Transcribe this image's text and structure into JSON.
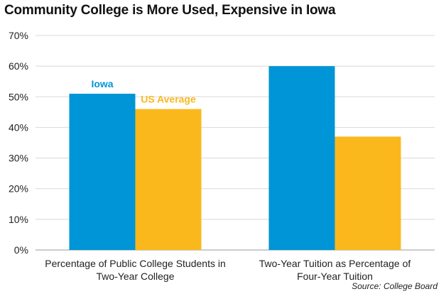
{
  "title": "Community College is More Used, Expensive in Iowa",
  "source": "Source: College Board",
  "chart_data": {
    "type": "bar",
    "title": "Community College is More Used, Expensive in Iowa",
    "categories": [
      [
        "Percentage of Public College Students in",
        "Two-Year College"
      ],
      [
        "Two-Year Tuition as Percentage of",
        "Four-Year Tuition"
      ]
    ],
    "series": [
      {
        "name": "Iowa",
        "values": [
          51,
          60
        ],
        "color": "#0095d6"
      },
      {
        "name": "US Average",
        "values": [
          46,
          37
        ],
        "color": "#fbb81c"
      }
    ],
    "ylim": [
      0,
      70
    ],
    "yticks": [
      "0%",
      "10%",
      "20%",
      "30%",
      "40%",
      "50%",
      "60%",
      "70%"
    ],
    "grid": true,
    "legend": "inline labels above first group bars"
  }
}
